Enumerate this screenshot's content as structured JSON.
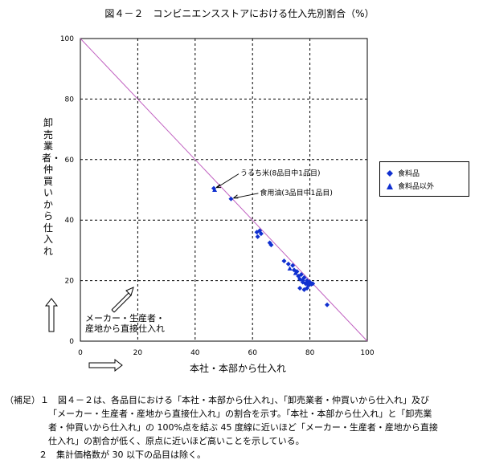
{
  "chart_data": {
    "type": "scatter",
    "title": "図４－２　コンビニエンスストアにおける仕入先別割合（%）",
    "xlabel": "本社・本部から仕入れ",
    "ylabel": "卸売業者・仲買いから仕入れ",
    "xlim": [
      0,
      100
    ],
    "ylim": [
      0,
      100
    ],
    "xticks": [
      "0",
      "20",
      "40",
      "60",
      "80",
      "100"
    ],
    "yticks": [
      "0",
      "20",
      "40",
      "60",
      "80",
      "100"
    ],
    "grid": true,
    "legend_position": "right",
    "reference_line": {
      "from": [
        0,
        100
      ],
      "to": [
        100,
        0
      ],
      "color": "#c060c0"
    },
    "series": [
      {
        "name": "食料品",
        "marker": "diamond",
        "color": "#1030d0",
        "points": [
          [
            46.5,
            50.5
          ],
          [
            52.5,
            47.0
          ],
          [
            61.5,
            36.0
          ],
          [
            61.8,
            34.5
          ],
          [
            63.0,
            35.5
          ],
          [
            62.5,
            36.5
          ],
          [
            66.0,
            32.5
          ],
          [
            66.5,
            31.8
          ],
          [
            71.0,
            26.5
          ],
          [
            72.5,
            25.5
          ],
          [
            74.0,
            25.0
          ],
          [
            74.5,
            23.5
          ],
          [
            75.5,
            23.0
          ],
          [
            76.0,
            21.5
          ],
          [
            76.5,
            20.5
          ],
          [
            77.0,
            22.0
          ],
          [
            77.5,
            19.5
          ],
          [
            78.0,
            21.0
          ],
          [
            78.5,
            19.0
          ],
          [
            79.0,
            20.0
          ],
          [
            79.5,
            18.5
          ],
          [
            80.0,
            19.5
          ],
          [
            80.5,
            18.8
          ],
          [
            81.0,
            19.0
          ],
          [
            76.5,
            17.5
          ],
          [
            78.0,
            17.0
          ],
          [
            79.0,
            17.5
          ],
          [
            86.0,
            12.0
          ]
        ]
      },
      {
        "name": "食料品以外",
        "marker": "triangle",
        "color": "#1030d0",
        "points": [
          [
            46.8,
            50.0
          ],
          [
            73.0,
            24.0
          ],
          [
            75.0,
            22.5
          ],
          [
            77.5,
            20.5
          ],
          [
            79.5,
            19.5
          ]
        ]
      }
    ],
    "annotations": [
      {
        "text": "うるち米(8品目中1品目)",
        "x": 46.5,
        "y": 50.5
      },
      {
        "text": "食用油(3品目中1品目)",
        "x": 52.5,
        "y": 47.0
      }
    ],
    "corner_note": "メーカー・生産者・産地から直接仕入れ"
  },
  "origin_label": [
    "メーカー・生産者・",
    "産地から直接仕入れ"
  ],
  "notes": [
    "（補足）１　図４－２は、各品目における「本社・本部から仕入れ」、「卸売業者・仲買いから仕入れ」及び",
    "「メーカー・生産者・産地から直接仕入れ」の割合を示す。「本社・本部から仕入れ」と「卸売業",
    "者・仲買いから仕入れ」の 100%点を結ぶ 45 度線に近いほど「メーカー・生産者・産地から直接",
    "仕入れ」の割合が低く、原点に近いほど高いことを示している。",
    "２　集計価格数が 30 以下の品目は除く。"
  ]
}
